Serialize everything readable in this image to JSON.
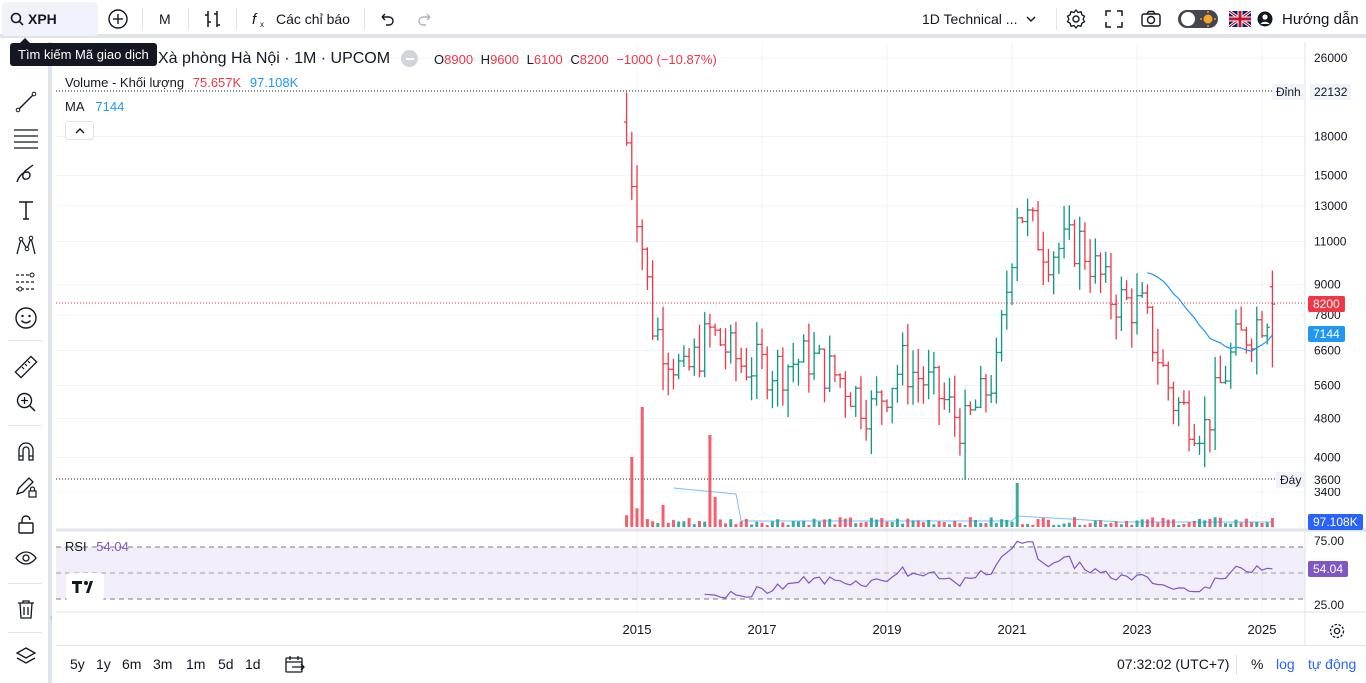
{
  "toolbar": {
    "symbol": "XPH",
    "interval": "M",
    "indicators_label": "Các chỉ báo",
    "layout_name": "1D Technical ...",
    "guide_label": "Hướng dẫn"
  },
  "tooltip": "Tìm kiếm Mã giao dịch",
  "legend": {
    "title": "Xà phòng Hà Nội · 1M · UPCOM",
    "o_label": "O",
    "o_value": "8900",
    "h_label": "H",
    "h_value": "9600",
    "l_label": "L",
    "l_value": "6100",
    "c_label": "C",
    "c_value": "8200",
    "change": "−1000 (−10.87%)",
    "volume_label": "Volume - Khối lượng",
    "volume_value": "75.657K",
    "volume_ma": "97.108K",
    "ma_label": "MA",
    "ma_value": "7144",
    "rsi_label": "RSI",
    "rsi_value": "54.04"
  },
  "price_scale": {
    "ticks": [
      "26000",
      "18000",
      "15000",
      "13000",
      "11000",
      "9000",
      "7800",
      "6600",
      "5600",
      "4800",
      "4000",
      "3400"
    ],
    "high_label": "Đỉnh",
    "high_value": "22132",
    "low_label": "Đáy",
    "low_value": "3600",
    "last_price": "8200",
    "ma_tag": "7144",
    "volume_tag": "97.108K",
    "rsi_ticks": [
      "75.00",
      "25.00"
    ],
    "rsi_tag": "54.04"
  },
  "time_axis": [
    "2015",
    "2017",
    "2019",
    "2021",
    "2023",
    "2025"
  ],
  "bottom": {
    "ranges": [
      "5y",
      "1y",
      "6m",
      "3m",
      "1m",
      "5d",
      "1d"
    ],
    "clock": "07:32:02 (UTC+7)",
    "percent": "%",
    "log": "log",
    "auto": "tự động"
  },
  "colors": {
    "up": "#089981",
    "down": "#f23645",
    "ma": "#2196f3",
    "rsi": "#7e57c2",
    "text": "#131722"
  },
  "chart_data": {
    "type": "ohlc",
    "interval": "1M",
    "last_bar": {
      "open": 8900,
      "high": 9600,
      "low": 6100,
      "close": 8200
    },
    "all_time_high": 22132,
    "all_time_low": 3600,
    "ma_last": 7144,
    "volume_last": 75657,
    "volume_ma_last": 97108,
    "rsi_last": 54.04,
    "rsi_bands": [
      25,
      75
    ],
    "ylim": [
      3400,
      26000
    ],
    "x_range": [
      "2014-11",
      "2025-03"
    ],
    "anchor_closes": [
      {
        "x": "2014-11",
        "close": 17500
      },
      {
        "x": "2015-01",
        "close": 13000
      },
      {
        "x": "2015-04",
        "close": 7500
      },
      {
        "x": "2015-10",
        "close": 5800
      },
      {
        "x": "2016-03",
        "close": 7200
      },
      {
        "x": "2016-09",
        "close": 6200
      },
      {
        "x": "2017-04",
        "close": 6100
      },
      {
        "x": "2017-10",
        "close": 6400
      },
      {
        "x": "2018-04",
        "close": 5800
      },
      {
        "x": "2018-10",
        "close": 5000
      },
      {
        "x": "2019-04",
        "close": 6200
      },
      {
        "x": "2019-10",
        "close": 5500
      },
      {
        "x": "2020-04",
        "close": 4600
      },
      {
        "x": "2020-10",
        "close": 6000
      },
      {
        "x": "2021-02",
        "close": 13000
      },
      {
        "x": "2021-08",
        "close": 10500
      },
      {
        "x": "2022-02",
        "close": 11000
      },
      {
        "x": "2022-08",
        "close": 8500
      },
      {
        "x": "2023-02",
        "close": 8000
      },
      {
        "x": "2023-08",
        "close": 5200
      },
      {
        "x": "2024-02",
        "close": 4600
      },
      {
        "x": "2024-08",
        "close": 6800
      },
      {
        "x": "2025-03",
        "close": 8200
      }
    ]
  }
}
